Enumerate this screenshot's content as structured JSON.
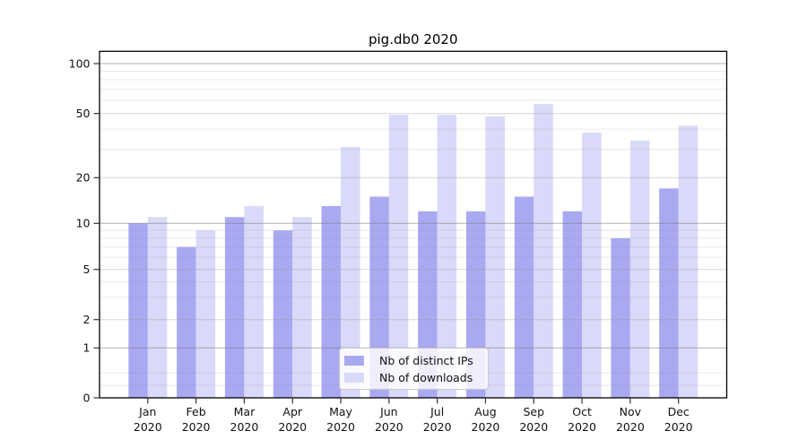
{
  "figure": {
    "title": "pig.db0 2020"
  },
  "legend": {
    "items": [
      {
        "label": "Nb of distinct IPs",
        "color": "#a9a9f2"
      },
      {
        "label": "Nb of downloads",
        "color": "#d9d9f9"
      }
    ]
  },
  "chart_data": {
    "type": "bar",
    "title": "pig.db0 2020",
    "categories": [
      "Jan 2020",
      "Feb 2020",
      "Mar 2020",
      "Apr 2020",
      "May 2020",
      "Jun 2020",
      "Jul 2020",
      "Aug 2020",
      "Sep 2020",
      "Oct 2020",
      "Nov 2020",
      "Dec 2020"
    ],
    "series": [
      {
        "name": "Nb of distinct IPs",
        "color": "#a9a9f2",
        "values": [
          10,
          7,
          11,
          9,
          13,
          15,
          12,
          12,
          15,
          12,
          8,
          17
        ]
      },
      {
        "name": "Nb of downloads",
        "color": "#d9d9f9",
        "values": [
          11,
          9,
          13,
          11,
          31,
          49,
          49,
          48,
          57,
          38,
          34,
          42
        ]
      }
    ],
    "xlabel": "",
    "ylabel": "",
    "yscale": "symlog",
    "yticks": [
      0,
      1,
      2,
      5,
      10,
      20,
      50,
      100
    ],
    "ylim": [
      0,
      120
    ],
    "grid": true,
    "legend_position": "lower center"
  }
}
